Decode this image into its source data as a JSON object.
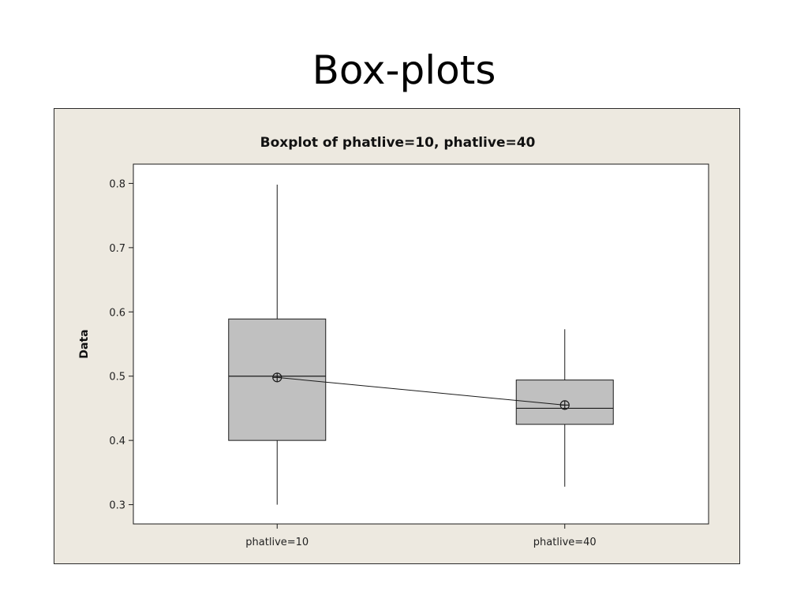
{
  "slide": {
    "title": "Box-plots"
  },
  "chart_data": {
    "type": "boxplot",
    "title": "Boxplot of phatlive=10, phatlive=40",
    "xlabel": "",
    "ylabel": "Data",
    "ylim": [
      0.27,
      0.83
    ],
    "yticks": [
      0.3,
      0.4,
      0.5,
      0.6,
      0.7,
      0.8
    ],
    "ytick_labels": [
      "0.3",
      "0.4",
      "0.5",
      "0.6",
      "0.7",
      "0.8"
    ],
    "categories": [
      "phatlive=10",
      "phatlive=40"
    ],
    "boxes": [
      {
        "category": "phatlive=10",
        "whisker_low": 0.3,
        "q1": 0.4,
        "median": 0.5,
        "q3": 0.589,
        "whisker_high": 0.798,
        "mean": 0.498
      },
      {
        "category": "phatlive=40",
        "whisker_low": 0.328,
        "q1": 0.425,
        "median": 0.45,
        "q3": 0.494,
        "whisker_high": 0.573,
        "mean": 0.455
      }
    ],
    "mean_connect_line": true,
    "grid": false,
    "colors": {
      "box_fill": "#c0c0c0",
      "stroke": "#1a1a1a",
      "plot_bg": "#ffffff",
      "frame_bg": "#ede9e0"
    }
  }
}
